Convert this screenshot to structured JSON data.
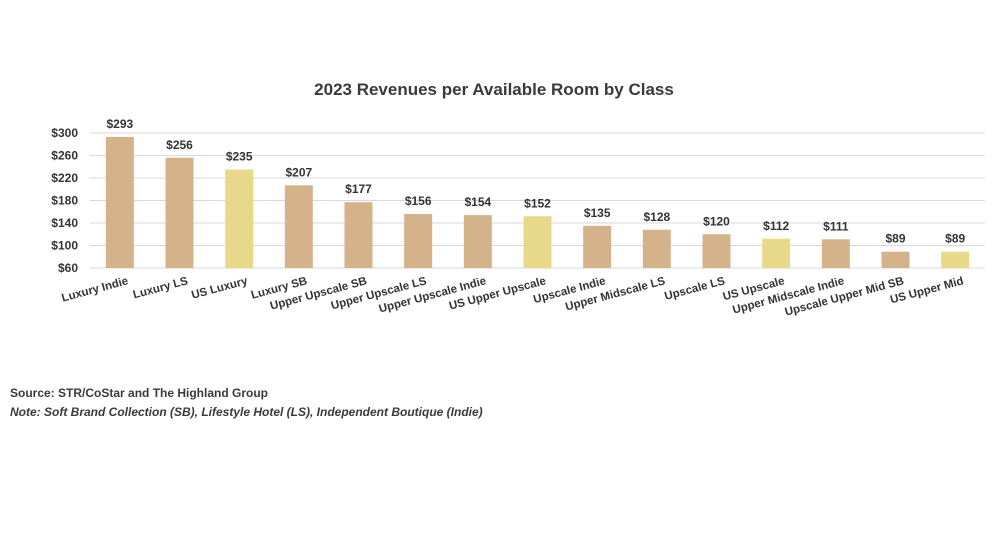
{
  "chart_data": {
    "type": "bar",
    "title": "2023 Revenues per Available Room by Class",
    "categories": [
      "Luxury Indie",
      "Luxury LS",
      "US Luxury",
      "Luxury SB",
      "Upper Upscale SB",
      "Upper Upscale LS",
      "Upper Upscale Indie",
      "US Upper Upscale",
      "Upscale Indie",
      "Upper Midscale LS",
      "Upscale LS",
      "US Upscale",
      "Upper Midscale  Indie",
      "Upscale Upper Mid SB",
      "US Upper Mid"
    ],
    "values": [
      293,
      256,
      235,
      207,
      177,
      156,
      154,
      152,
      135,
      128,
      120,
      112,
      111,
      89,
      89
    ],
    "data_labels": [
      "$293",
      "$256",
      "$235",
      "$207",
      "$177",
      "$156",
      "$154",
      "$152",
      "$135",
      "$128",
      "$120",
      "$112",
      "$111",
      "$89",
      "$89"
    ],
    "highlight": [
      false,
      false,
      true,
      false,
      false,
      false,
      false,
      true,
      false,
      false,
      false,
      true,
      false,
      false,
      true
    ],
    "ylim": [
      60,
      300
    ],
    "yticks": [
      60,
      100,
      140,
      180,
      220,
      260,
      300
    ],
    "ytick_labels": [
      "$60",
      "$100",
      "$140",
      "$180",
      "$220",
      "$260",
      "$300"
    ],
    "xlabel": "",
    "ylabel": "",
    "grid": true,
    "legend": "none",
    "colors": {
      "bar": "#d4b38a",
      "highlight": "#e8d98a",
      "grid": "#d9d9d9"
    }
  },
  "footer": {
    "source": "Source: STR/CoStar and The Highland Group",
    "note": "Note:  Soft Brand Collection (SB), Lifestyle Hotel (LS), Independent Boutique (Indie)"
  }
}
